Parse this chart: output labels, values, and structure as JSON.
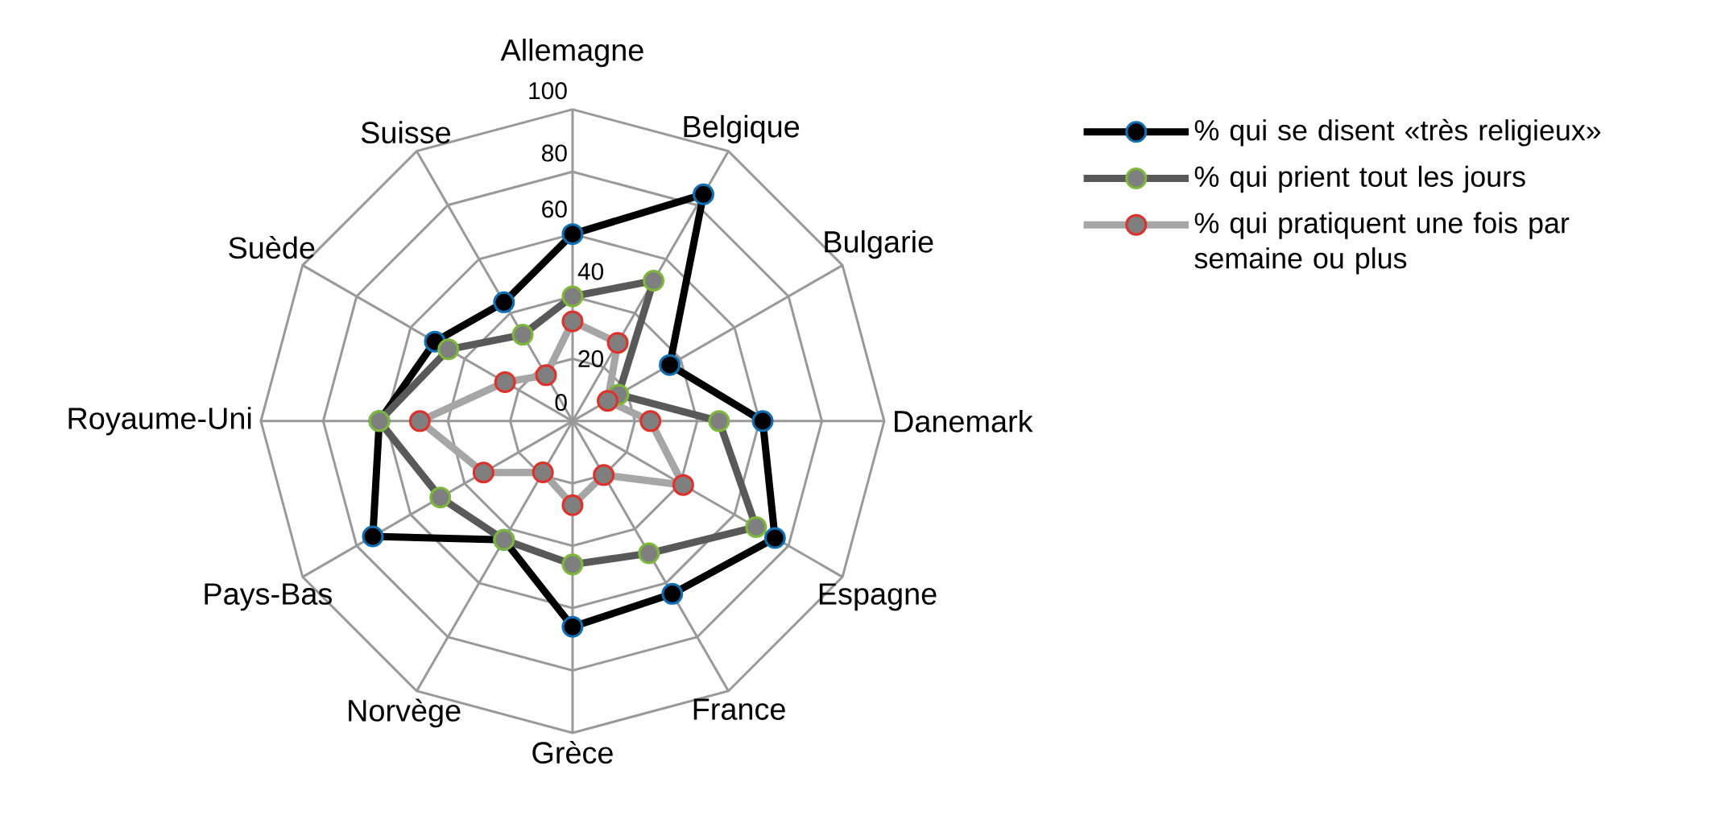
{
  "chart_data": {
    "type": "radar",
    "categories": [
      "Allemagne",
      "Belgique",
      "Bulgarie",
      "Danemark",
      "Espagne",
      "France",
      "Grèce",
      "Norvège",
      "Pays-Bas",
      "Royaume-Uni",
      "Suède",
      "Suisse"
    ],
    "series": [
      {
        "name": "% qui se disent «très religieux»",
        "color": "#000000",
        "values": [
          60,
          84,
          36,
          61,
          75,
          64,
          66,
          44,
          74,
          62,
          51,
          44
        ]
      },
      {
        "name": "% qui prient tout les jours",
        "color": "#595959",
        "values": [
          40,
          52,
          17,
          47,
          68,
          49,
          46,
          44,
          49,
          62,
          46,
          32
        ]
      },
      {
        "name": "% qui pratiquent une fois par semaine ou plus",
        "color": "#a6a6a6",
        "values": [
          32,
          29,
          13,
          25,
          41,
          20,
          27,
          19,
          33,
          49,
          25,
          17
        ]
      }
    ],
    "ylim": [
      0,
      100
    ],
    "yticks": [
      0,
      20,
      40,
      60,
      80,
      100
    ],
    "grid": true,
    "legend": "top right",
    "marker": "circle",
    "line_style": "solid"
  }
}
